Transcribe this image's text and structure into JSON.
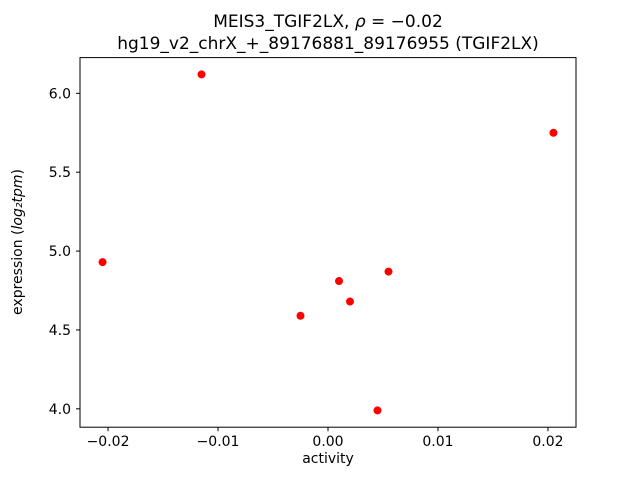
{
  "chart_data": {
    "type": "scatter",
    "title": {
      "line1_prefix": "MEIS3_TGIF2LX, ",
      "line1_rho": "ρ",
      "line1_suffix": " = −0.02",
      "line2": "hg19_v2_chrX_+_89176881_89176955 (TGIF2LX)"
    },
    "xlabel": "activity",
    "ylabel": {
      "prefix": "expression (",
      "math": "log₂tpm",
      "suffix": ")"
    },
    "xlim": [
      -0.02255,
      0.02255
    ],
    "ylim": [
      3.8835,
      6.2265
    ],
    "grid": false,
    "legend": "none",
    "xticks": [
      {
        "v": -0.02,
        "label": "−0.02"
      },
      {
        "v": -0.01,
        "label": "−0.01"
      },
      {
        "v": 0.0,
        "label": "0.00"
      },
      {
        "v": 0.01,
        "label": "0.01"
      },
      {
        "v": 0.02,
        "label": "0.02"
      }
    ],
    "yticks": [
      {
        "v": 4.0,
        "label": "4.0"
      },
      {
        "v": 4.5,
        "label": "4.5"
      },
      {
        "v": 5.0,
        "label": "5.0"
      },
      {
        "v": 5.5,
        "label": "5.5"
      },
      {
        "v": 6.0,
        "label": "6.0"
      }
    ],
    "marker": {
      "color": "#ff0000",
      "size": 4
    },
    "points": [
      {
        "x": -0.0205,
        "y": 4.93
      },
      {
        "x": -0.0115,
        "y": 6.12
      },
      {
        "x": 0.0205,
        "y": 5.75
      },
      {
        "x": -0.0025,
        "y": 4.59
      },
      {
        "x": 0.001,
        "y": 4.81
      },
      {
        "x": 0.002,
        "y": 4.68
      },
      {
        "x": 0.0055,
        "y": 4.87
      },
      {
        "x": 0.0045,
        "y": 3.99
      }
    ]
  }
}
